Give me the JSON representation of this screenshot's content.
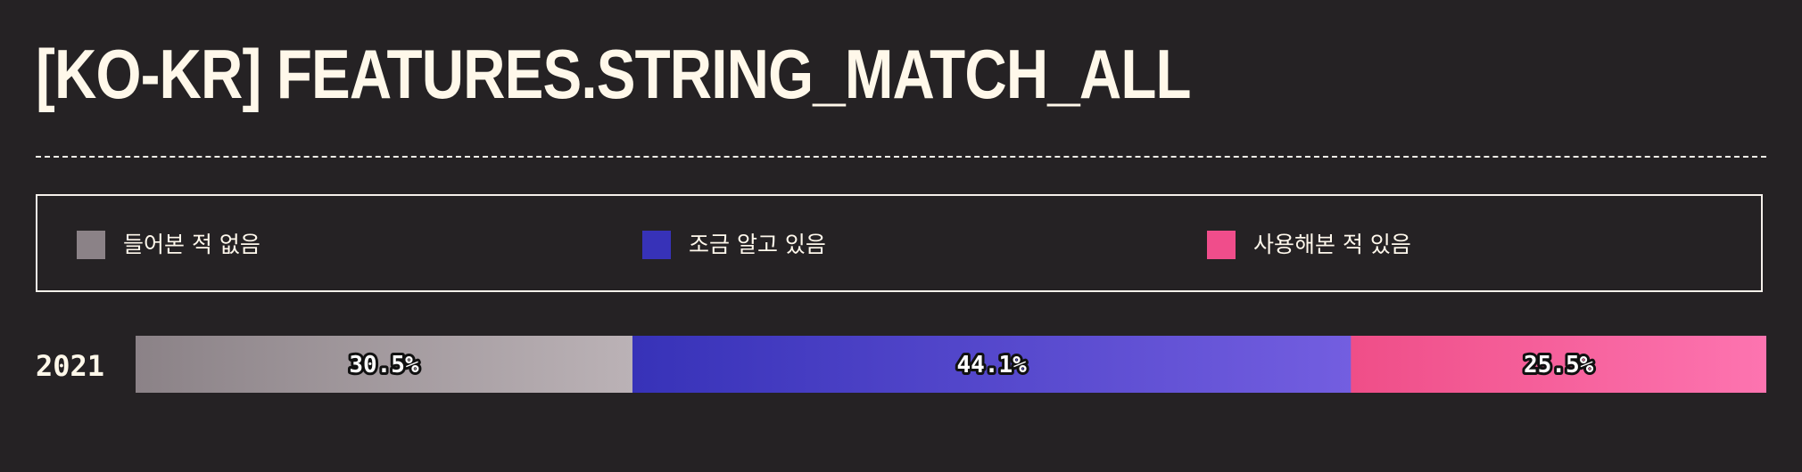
{
  "title": "[KO-KR] FEATURES.STRING_MATCH_ALL",
  "legend": [
    {
      "label": "들어본 적 없음",
      "color": "#8b8287"
    },
    {
      "label": "조금 알고 있음",
      "color": "#3732b8"
    },
    {
      "label": "사용해본 적 있음",
      "color": "#f04d8b"
    }
  ],
  "chart_data": {
    "type": "bar",
    "stacked": true,
    "orientation": "horizontal",
    "categories": [
      "2021"
    ],
    "series": [
      {
        "name": "들어본 적 없음",
        "values": [
          30.5
        ],
        "label": "30.5%",
        "color_start": "#8b8287",
        "color_end": "#bbb2b6"
      },
      {
        "name": "조금 알고 있음",
        "values": [
          44.1
        ],
        "label": "44.1%",
        "color_start": "#3732b8",
        "color_end": "#735ee0"
      },
      {
        "name": "사용해본 적 있음",
        "values": [
          25.5
        ],
        "label": "25.5%",
        "color_start": "#ef4e88",
        "color_end": "#fd74b0"
      }
    ],
    "unit": "%"
  }
}
